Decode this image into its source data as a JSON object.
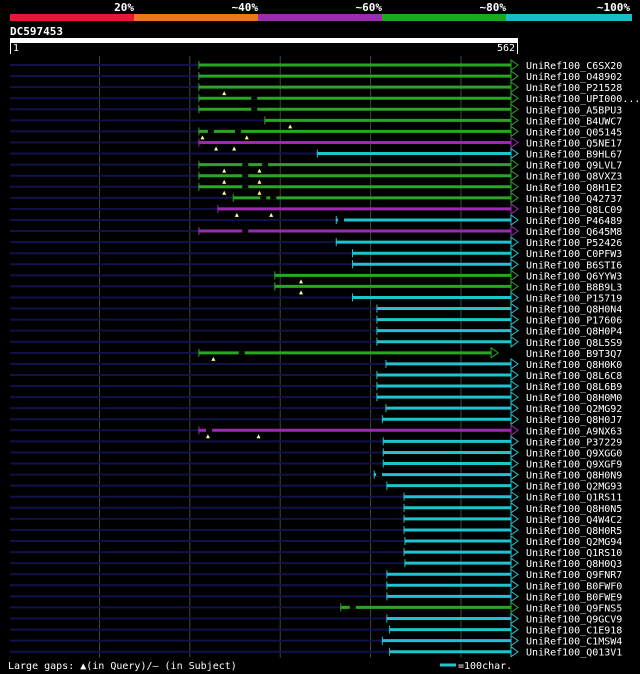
{
  "legend_scale": {
    "labels": [
      "20%",
      "~40%",
      "~60%",
      "~80%",
      "~100%"
    ],
    "colors": [
      "#e8173a",
      "#e7781e",
      "#9b2bb0",
      "#21a61f",
      "#18bfc9"
    ]
  },
  "query": {
    "id": "DC597453",
    "start": "1",
    "end": "562",
    "length": 562
  },
  "gridlines": [
    100,
    200,
    300,
    400,
    500
  ],
  "hits": [
    {
      "name": "UniRef100_C6SX20",
      "start": 210,
      "end": 562,
      "color": "green",
      "gaps_q": [],
      "gaps_s": []
    },
    {
      "name": "UniRef100_O48902",
      "start": 210,
      "end": 562,
      "color": "green",
      "gaps_q": [],
      "gaps_s": []
    },
    {
      "name": "UniRef100_P21528",
      "start": 210,
      "end": 562,
      "color": "green",
      "gaps_q": [
        238
      ],
      "gaps_s": []
    },
    {
      "name": "UniRef100_UPI000...",
      "start": 210,
      "end": 562,
      "color": "green",
      "gaps_q": [],
      "gaps_s": [
        268
      ]
    },
    {
      "name": "UniRef100_A5BPU3",
      "start": 210,
      "end": 562,
      "color": "green",
      "gaps_q": [],
      "gaps_s": [
        268
      ]
    },
    {
      "name": "UniRef100_B4UWC7",
      "start": 283,
      "end": 562,
      "color": "green",
      "gaps_q": [
        311
      ],
      "gaps_s": []
    },
    {
      "name": "UniRef100_Q05145",
      "start": 210,
      "end": 562,
      "color": "green",
      "gaps_q": [
        214,
        263
      ],
      "gaps_s": [
        220,
        250
      ]
    },
    {
      "name": "UniRef100_Q5NE17",
      "start": 210,
      "end": 562,
      "color": "purple",
      "gaps_q": [
        229,
        249
      ],
      "gaps_s": []
    },
    {
      "name": "UniRef100_B9HL67",
      "start": 341,
      "end": 562,
      "color": "cyan",
      "gaps_q": [],
      "gaps_s": []
    },
    {
      "name": "UniRef100_Q9LVL7",
      "start": 210,
      "end": 562,
      "color": "green",
      "gaps_q": [
        238,
        277
      ],
      "gaps_s": [
        258,
        280
      ]
    },
    {
      "name": "UniRef100_Q8VXZ3",
      "start": 210,
      "end": 562,
      "color": "green",
      "gaps_q": [
        238,
        277
      ],
      "gaps_s": [
        258
      ]
    },
    {
      "name": "UniRef100_Q8H1E2",
      "start": 210,
      "end": 562,
      "color": "green",
      "gaps_q": [
        238,
        277
      ],
      "gaps_s": [
        258
      ]
    },
    {
      "name": "UniRef100_Q42737",
      "start": 248,
      "end": 562,
      "color": "green",
      "gaps_q": [],
      "gaps_s": [
        278,
        289
      ]
    },
    {
      "name": "UniRef100_Q8LC09",
      "start": 231,
      "end": 562,
      "color": "purple",
      "gaps_q": [
        252,
        290
      ],
      "gaps_s": []
    },
    {
      "name": "UniRef100_P46489",
      "start": 362,
      "end": 562,
      "color": "cyan",
      "gaps_q": [],
      "gaps_s": [
        364
      ]
    },
    {
      "name": "UniRef100_Q645M8",
      "start": 210,
      "end": 562,
      "color": "purple",
      "gaps_q": [],
      "gaps_s": [
        258
      ]
    },
    {
      "name": "UniRef100_P52426",
      "start": 362,
      "end": 562,
      "color": "cyan",
      "gaps_q": [],
      "gaps_s": []
    },
    {
      "name": "UniRef100_C0PFW3",
      "start": 380,
      "end": 562,
      "color": "cyan",
      "gaps_q": [],
      "gaps_s": []
    },
    {
      "name": "UniRef100_B6STI6",
      "start": 380,
      "end": 562,
      "color": "cyan",
      "gaps_q": [],
      "gaps_s": []
    },
    {
      "name": "UniRef100_Q6YYW3",
      "start": 294,
      "end": 562,
      "color": "green",
      "gaps_q": [
        323
      ],
      "gaps_s": []
    },
    {
      "name": "UniRef100_B8B9L3",
      "start": 294,
      "end": 562,
      "color": "green",
      "gaps_q": [
        323
      ],
      "gaps_s": []
    },
    {
      "name": "UniRef100_P15719",
      "start": 380,
      "end": 562,
      "color": "cyan",
      "gaps_q": [],
      "gaps_s": []
    },
    {
      "name": "UniRef100_Q8H0N4",
      "start": 407,
      "end": 562,
      "color": "cyan",
      "gaps_q": [],
      "gaps_s": []
    },
    {
      "name": "UniRef100_P17606",
      "start": 407,
      "end": 562,
      "color": "cyan",
      "gaps_q": [],
      "gaps_s": []
    },
    {
      "name": "UniRef100_Q8H0P4",
      "start": 407,
      "end": 562,
      "color": "cyan",
      "gaps_q": [],
      "gaps_s": []
    },
    {
      "name": "UniRef100_Q8L5S9",
      "start": 407,
      "end": 562,
      "color": "cyan",
      "gaps_q": [],
      "gaps_s": []
    },
    {
      "name": "UniRef100_B9T3Q7",
      "start": 210,
      "end": 540,
      "color": "green",
      "gaps_q": [
        226
      ],
      "gaps_s": [
        254
      ]
    },
    {
      "name": "UniRef100_Q8H0K0",
      "start": 417,
      "end": 562,
      "color": "cyan",
      "gaps_q": [],
      "gaps_s": []
    },
    {
      "name": "UniRef100_Q8L6C8",
      "start": 407,
      "end": 562,
      "color": "cyan",
      "gaps_q": [],
      "gaps_s": []
    },
    {
      "name": "UniRef100_Q8L6B9",
      "start": 407,
      "end": 562,
      "color": "cyan",
      "gaps_q": [],
      "gaps_s": []
    },
    {
      "name": "UniRef100_Q8H0M0",
      "start": 407,
      "end": 562,
      "color": "cyan",
      "gaps_q": [],
      "gaps_s": []
    },
    {
      "name": "UniRef100_Q2MG92",
      "start": 417,
      "end": 562,
      "color": "cyan",
      "gaps_q": [],
      "gaps_s": []
    },
    {
      "name": "UniRef100_Q8H0J7",
      "start": 413,
      "end": 562,
      "color": "cyan",
      "gaps_q": [],
      "gaps_s": []
    },
    {
      "name": "UniRef100_A9NX63",
      "start": 210,
      "end": 562,
      "color": "purple",
      "gaps_q": [
        220,
        276
      ],
      "gaps_s": [
        218
      ]
    },
    {
      "name": "UniRef100_P37229",
      "start": 414,
      "end": 562,
      "color": "cyan",
      "gaps_q": [],
      "gaps_s": []
    },
    {
      "name": "UniRef100_Q9XGG0",
      "start": 414,
      "end": 562,
      "color": "cyan",
      "gaps_q": [],
      "gaps_s": []
    },
    {
      "name": "UniRef100_Q9XGF9",
      "start": 414,
      "end": 562,
      "color": "cyan",
      "gaps_q": [],
      "gaps_s": []
    },
    {
      "name": "UniRef100_Q8H0N9",
      "start": 404,
      "end": 562,
      "color": "cyan",
      "gaps_q": [],
      "gaps_s": [
        406
      ]
    },
    {
      "name": "UniRef100_Q2MG93",
      "start": 418,
      "end": 562,
      "color": "cyan",
      "gaps_q": [],
      "gaps_s": []
    },
    {
      "name": "UniRef100_Q1RS11",
      "start": 437,
      "end": 562,
      "color": "cyan",
      "gaps_q": [],
      "gaps_s": []
    },
    {
      "name": "UniRef100_Q8H0N5",
      "start": 437,
      "end": 562,
      "color": "cyan",
      "gaps_q": [],
      "gaps_s": []
    },
    {
      "name": "UniRef100_Q4W4C2",
      "start": 437,
      "end": 562,
      "color": "cyan",
      "gaps_q": [],
      "gaps_s": []
    },
    {
      "name": "UniRef100_Q8H0R5",
      "start": 437,
      "end": 562,
      "color": "cyan",
      "gaps_q": [],
      "gaps_s": []
    },
    {
      "name": "UniRef100_Q2MG94",
      "start": 438,
      "end": 562,
      "color": "cyan",
      "gaps_q": [],
      "gaps_s": []
    },
    {
      "name": "UniRef100_Q1RS10",
      "start": 437,
      "end": 562,
      "color": "cyan",
      "gaps_q": [],
      "gaps_s": []
    },
    {
      "name": "UniRef100_Q8H0Q3",
      "start": 438,
      "end": 562,
      "color": "cyan",
      "gaps_q": [],
      "gaps_s": []
    },
    {
      "name": "UniRef100_Q9FNR7",
      "start": 418,
      "end": 562,
      "color": "cyan",
      "gaps_q": [],
      "gaps_s": []
    },
    {
      "name": "UniRef100_B0FWF0",
      "start": 418,
      "end": 562,
      "color": "cyan",
      "gaps_q": [],
      "gaps_s": []
    },
    {
      "name": "UniRef100_B0FWE9",
      "start": 418,
      "end": 562,
      "color": "cyan",
      "gaps_q": [],
      "gaps_s": []
    },
    {
      "name": "UniRef100_Q9FNS5",
      "start": 367,
      "end": 562,
      "color": "green",
      "gaps_q": [],
      "gaps_s": [
        377
      ]
    },
    {
      "name": "UniRef100_Q9GCV9",
      "start": 418,
      "end": 562,
      "color": "cyan",
      "gaps_q": [],
      "gaps_s": []
    },
    {
      "name": "UniRef100_C1E918",
      "start": 421,
      "end": 562,
      "color": "cyan",
      "gaps_q": [],
      "gaps_s": []
    },
    {
      "name": "UniRef100_C1MSW4",
      "start": 413,
      "end": 562,
      "color": "cyan",
      "gaps_q": [],
      "gaps_s": []
    },
    {
      "name": "UniRef100_Q013V1",
      "start": 421,
      "end": 562,
      "color": "cyan",
      "gaps_q": [],
      "gaps_s": []
    }
  ],
  "colors": {
    "green": "#2ba624",
    "cyan": "#1fc4d0",
    "purple": "#9a2bb0",
    "unaligned": "#12124a",
    "gridline": "#3c4a3c",
    "gap_query": "#ffff88",
    "gap_subject": "#ff3333"
  },
  "footer": {
    "gaps_text": "Large gaps: ▲(in Query)/— (in Subject)",
    "scale_text": "=100char."
  }
}
